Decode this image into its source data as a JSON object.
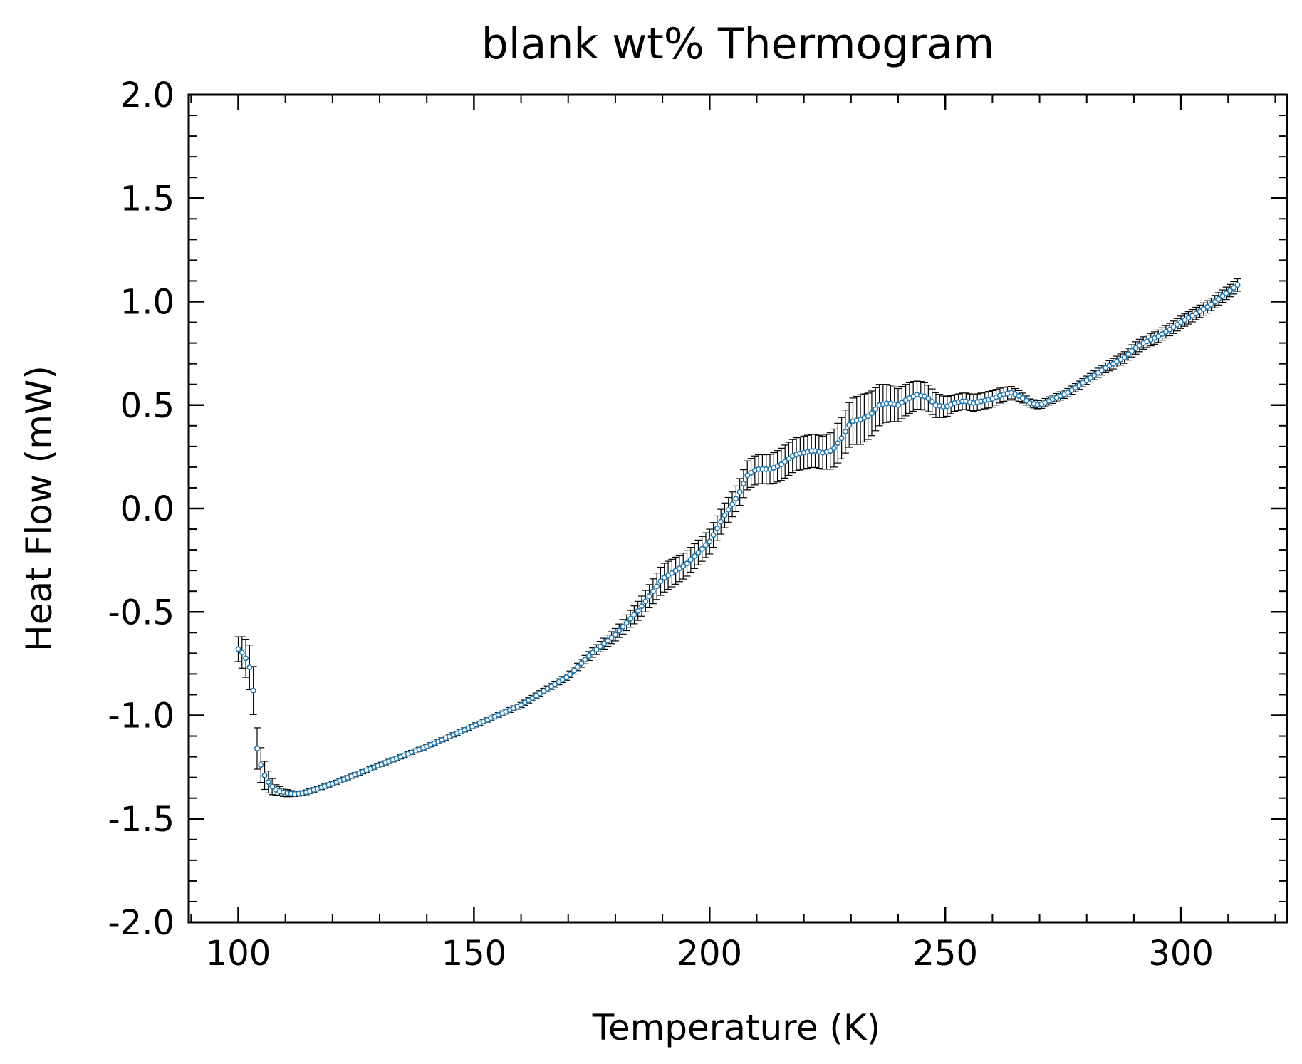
{
  "chart_data": {
    "type": "scatter",
    "title": "blank wt% Thermogram",
    "xlabel": "Temperature (K)",
    "ylabel": "Heat Flow (mW)",
    "xlim": [
      89.5,
      322.5
    ],
    "ylim": [
      -2.0,
      2.0
    ],
    "x_ticks": [
      100,
      150,
      200,
      250,
      300
    ],
    "x_tick_labels": [
      "100",
      "150",
      "200",
      "250",
      "300"
    ],
    "y_ticks": [
      -2.0,
      -1.5,
      -1.0,
      -0.5,
      0.0,
      0.5,
      1.0,
      1.5,
      2.0
    ],
    "y_tick_labels": [
      "-2.0",
      "-1.5",
      "-1.0",
      "-0.5",
      "0.0",
      "0.5",
      "1.0",
      "1.5",
      "2.0"
    ],
    "grid": false,
    "marker_color": "#1f77b4",
    "errorbar_color": "#000000",
    "series": [
      {
        "name": "blank wt%",
        "anchors_x": [
          100,
          101,
          102,
          103,
          104,
          105,
          106,
          107,
          108,
          110,
          112,
          114,
          116,
          120,
          130,
          140,
          150,
          160,
          165,
          170,
          175,
          180,
          185,
          190,
          195,
          200,
          203,
          206,
          208,
          210,
          213,
          215,
          218,
          220,
          222,
          224,
          226,
          228,
          230,
          232,
          234,
          236,
          238,
          240,
          242,
          244,
          246,
          248,
          250,
          252,
          254,
          256,
          258,
          260,
          262,
          264,
          266,
          268,
          270,
          272,
          274,
          276,
          278,
          280,
          284,
          288,
          290,
          292,
          295,
          298,
          300,
          303,
          306,
          309,
          312
        ],
        "anchors_y": [
          -0.68,
          -0.7,
          -0.74,
          -0.81,
          -1.16,
          -1.26,
          -1.31,
          -1.34,
          -1.36,
          -1.375,
          -1.38,
          -1.375,
          -1.36,
          -1.33,
          -1.24,
          -1.15,
          -1.05,
          -0.95,
          -0.88,
          -0.81,
          -0.7,
          -0.61,
          -0.49,
          -0.34,
          -0.27,
          -0.16,
          -0.04,
          0.06,
          0.16,
          0.19,
          0.19,
          0.21,
          0.26,
          0.27,
          0.28,
          0.27,
          0.28,
          0.34,
          0.42,
          0.43,
          0.45,
          0.5,
          0.51,
          0.5,
          0.53,
          0.55,
          0.54,
          0.5,
          0.49,
          0.51,
          0.52,
          0.51,
          0.52,
          0.53,
          0.55,
          0.56,
          0.54,
          0.51,
          0.5,
          0.52,
          0.54,
          0.56,
          0.59,
          0.62,
          0.68,
          0.73,
          0.77,
          0.8,
          0.83,
          0.87,
          0.9,
          0.94,
          0.98,
          1.03,
          1.08
        ],
        "error_anchors_x": [
          100,
          103,
          106,
          108,
          112,
          120,
          150,
          170,
          180,
          186,
          190,
          196,
          200,
          205,
          208,
          212,
          216,
          220,
          224,
          228,
          232,
          236,
          240,
          244,
          248,
          252,
          256,
          260,
          264,
          268,
          272,
          280,
          290,
          300,
          312
        ],
        "error_anchors_y": [
          0.06,
          0.12,
          0.06,
          0.025,
          0.012,
          0.01,
          0.01,
          0.015,
          0.03,
          0.05,
          0.07,
          0.06,
          0.06,
          0.06,
          0.07,
          0.07,
          0.08,
          0.08,
          0.08,
          0.1,
          0.12,
          0.1,
          0.08,
          0.07,
          0.06,
          0.04,
          0.04,
          0.04,
          0.03,
          0.02,
          0.02,
          0.02,
          0.03,
          0.03,
          0.03
        ],
        "sample_start": 100,
        "sample_end": 312,
        "sample_step": 0.8
      }
    ]
  }
}
